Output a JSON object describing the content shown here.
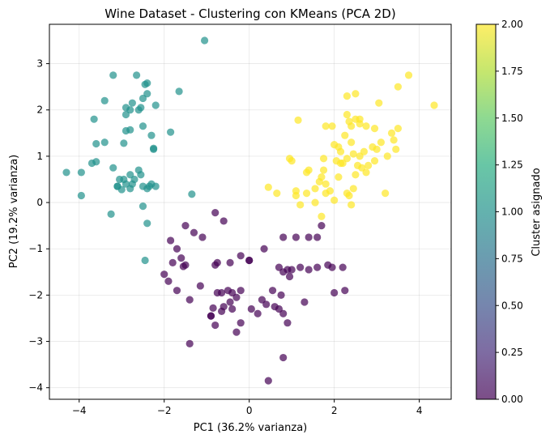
{
  "chart_data": {
    "type": "scatter",
    "title": "Wine Dataset - Clustering con KMeans (PCA 2D)",
    "xlabel": "PC1 (36.2% varianza)",
    "ylabel": "PC2 (19.2% varianza)",
    "xlim": [
      -4.7,
      4.75
    ],
    "ylim": [
      -4.25,
      3.85
    ],
    "xticks": [
      -4,
      -2,
      0,
      2,
      4
    ],
    "yticks": [
      -4,
      -3,
      -2,
      -1,
      0,
      1,
      2,
      3
    ],
    "grid": true,
    "colorbar": {
      "label": "Cluster asignado",
      "range": [
        0,
        2
      ],
      "ticks": [
        "0.00",
        "0.25",
        "0.50",
        "0.75",
        "1.00",
        "1.25",
        "1.50",
        "1.75",
        "2.00"
      ],
      "colormap": "viridis"
    },
    "cluster_colors": {
      "0": "#440154",
      "1": "#21918c",
      "2": "#fde725"
    },
    "series": [
      {
        "cluster": 0,
        "color": "#440154",
        "points": [
          [
            -0.8,
            -0.22
          ],
          [
            -0.6,
            -0.4
          ],
          [
            -1.5,
            -0.5
          ],
          [
            -1.3,
            -0.65
          ],
          [
            -1.85,
            -0.82
          ],
          [
            -1.7,
            -1.0
          ],
          [
            -1.1,
            -0.75
          ],
          [
            -1.6,
            -1.2
          ],
          [
            -1.8,
            -1.3
          ],
          [
            -1.5,
            -1.35
          ],
          [
            -1.55,
            -1.38
          ],
          [
            -2.0,
            -1.55
          ],
          [
            -1.9,
            -1.7
          ],
          [
            -1.7,
            -1.9
          ],
          [
            -1.4,
            -2.1
          ],
          [
            -1.15,
            -1.8
          ],
          [
            -0.75,
            -1.95
          ],
          [
            -0.65,
            -1.95
          ],
          [
            -0.4,
            -1.95
          ],
          [
            -0.5,
            -1.9
          ],
          [
            -0.3,
            -2.05
          ],
          [
            -0.45,
            -2.15
          ],
          [
            -0.6,
            -2.25
          ],
          [
            -0.85,
            -2.28
          ],
          [
            -0.65,
            -2.35
          ],
          [
            -0.8,
            -2.65
          ],
          [
            -0.9,
            -2.45
          ],
          [
            -0.4,
            -2.3
          ],
          [
            -0.2,
            -2.6
          ],
          [
            -0.3,
            -2.8
          ],
          [
            0.05,
            -2.3
          ],
          [
            0.2,
            -2.4
          ],
          [
            0.3,
            -2.1
          ],
          [
            0.4,
            -2.2
          ],
          [
            0.6,
            -2.25
          ],
          [
            0.7,
            -2.3
          ],
          [
            0.8,
            -2.4
          ],
          [
            0.9,
            -2.6
          ],
          [
            0.75,
            -2.0
          ],
          [
            0.55,
            -1.9
          ],
          [
            1.3,
            -2.15
          ],
          [
            0.8,
            -1.5
          ],
          [
            0.7,
            -1.4
          ],
          [
            0.9,
            -1.45
          ],
          [
            1.0,
            -1.45
          ],
          [
            1.2,
            -1.4
          ],
          [
            1.4,
            -1.45
          ],
          [
            1.6,
            -1.4
          ],
          [
            1.85,
            -1.35
          ],
          [
            1.95,
            -1.4
          ],
          [
            2.2,
            -1.4
          ],
          [
            2.0,
            -1.95
          ],
          [
            2.25,
            -1.9
          ],
          [
            0.8,
            -3.35
          ],
          [
            0.45,
            -3.85
          ],
          [
            -1.4,
            -3.05
          ],
          [
            -0.9,
            -2.45
          ],
          [
            0.35,
            -1.0
          ],
          [
            -0.2,
            -1.15
          ],
          [
            0.0,
            -1.25
          ],
          [
            -0.8,
            -1.35
          ],
          [
            -0.45,
            -1.3
          ],
          [
            -0.75,
            -1.3
          ],
          [
            -0.2,
            -1.9
          ],
          [
            1.1,
            -0.75
          ],
          [
            1.4,
            -0.75
          ],
          [
            1.6,
            -0.75
          ],
          [
            0.8,
            -0.75
          ],
          [
            1.7,
            -0.5
          ],
          [
            0.0,
            -1.25
          ],
          [
            0.95,
            -1.6
          ]
        ]
      },
      {
        "cluster": 1,
        "color": "#21918c",
        "points": [
          [
            -1.05,
            3.5
          ],
          [
            -4.3,
            0.65
          ],
          [
            -3.95,
            0.65
          ],
          [
            -3.95,
            0.15
          ],
          [
            -3.7,
            0.85
          ],
          [
            -3.6,
            0.88
          ],
          [
            -3.6,
            1.27
          ],
          [
            -3.65,
            1.8
          ],
          [
            -3.4,
            2.2
          ],
          [
            -3.4,
            1.3
          ],
          [
            -3.2,
            2.75
          ],
          [
            -3.2,
            0.75
          ],
          [
            -3.1,
            0.35
          ],
          [
            -3.05,
            0.5
          ],
          [
            -3.0,
            0.28
          ],
          [
            -3.1,
            0.35
          ],
          [
            -2.9,
            0.4
          ],
          [
            -2.95,
            0.5
          ],
          [
            -2.8,
            0.3
          ],
          [
            -2.8,
            0.6
          ],
          [
            -2.75,
            0.4
          ],
          [
            -2.7,
            0.5
          ],
          [
            -2.6,
            0.7
          ],
          [
            -2.55,
            0.6
          ],
          [
            -2.5,
            0.35
          ],
          [
            -2.4,
            0.3
          ],
          [
            -2.35,
            0.35
          ],
          [
            -2.3,
            0.4
          ],
          [
            -2.2,
            0.35
          ],
          [
            -2.9,
            1.55
          ],
          [
            -2.8,
            1.57
          ],
          [
            -2.95,
            1.28
          ],
          [
            -2.9,
            1.9
          ],
          [
            -2.9,
            2.05
          ],
          [
            -2.8,
            2.0
          ],
          [
            -2.75,
            2.15
          ],
          [
            -2.6,
            2.0
          ],
          [
            -2.55,
            2.05
          ],
          [
            -2.5,
            2.25
          ],
          [
            -2.4,
            2.35
          ],
          [
            -2.45,
            2.55
          ],
          [
            -2.4,
            2.58
          ],
          [
            -2.2,
            2.1
          ],
          [
            -2.65,
            2.75
          ],
          [
            -2.5,
            1.65
          ],
          [
            -2.3,
            1.45
          ],
          [
            -2.25,
            1.15
          ],
          [
            -2.25,
            1.17
          ],
          [
            -1.85,
            1.52
          ],
          [
            -1.65,
            2.4
          ],
          [
            -1.35,
            0.18
          ],
          [
            -2.4,
            -0.45
          ],
          [
            -2.5,
            -0.08
          ],
          [
            -3.25,
            -0.25
          ],
          [
            -2.45,
            -1.25
          ]
        ]
      },
      {
        "cluster": 2,
        "color": "#fde725",
        "points": [
          [
            0.45,
            0.33
          ],
          [
            0.65,
            0.2
          ],
          [
            0.95,
            0.95
          ],
          [
            1.0,
            0.9
          ],
          [
            1.1,
            0.25
          ],
          [
            1.1,
            0.15
          ],
          [
            1.2,
            -0.05
          ],
          [
            1.35,
            0.2
          ],
          [
            1.35,
            0.65
          ],
          [
            1.4,
            0.7
          ],
          [
            1.55,
            0.3
          ],
          [
            1.65,
            0.45
          ],
          [
            1.7,
            0.55
          ],
          [
            1.75,
            0.7
          ],
          [
            1.7,
            -0.3
          ],
          [
            1.8,
            0.4
          ],
          [
            1.8,
            0.2
          ],
          [
            1.9,
            0.25
          ],
          [
            2.0,
            0.05
          ],
          [
            2.1,
            0.55
          ],
          [
            2.05,
            0.9
          ],
          [
            2.0,
            1.25
          ],
          [
            2.1,
            1.2
          ],
          [
            2.15,
            1.1
          ],
          [
            2.3,
            0.2
          ],
          [
            2.35,
            0.15
          ],
          [
            2.4,
            -0.05
          ],
          [
            2.45,
            0.3
          ],
          [
            2.5,
            0.6
          ],
          [
            2.55,
            0.8
          ],
          [
            2.6,
            1.0
          ],
          [
            2.65,
            0.75
          ],
          [
            2.7,
            1.1
          ],
          [
            2.75,
            0.65
          ],
          [
            2.8,
            0.8
          ],
          [
            2.95,
            0.9
          ],
          [
            2.9,
            1.2
          ],
          [
            3.0,
            1.15
          ],
          [
            3.1,
            1.3
          ],
          [
            3.25,
            1.0
          ],
          [
            3.2,
            0.2
          ],
          [
            3.35,
            1.5
          ],
          [
            3.4,
            1.35
          ],
          [
            3.5,
            1.6
          ],
          [
            3.45,
            1.15
          ],
          [
            3.5,
            2.5
          ],
          [
            3.75,
            2.75
          ],
          [
            4.35,
            2.1
          ],
          [
            2.3,
            1.9
          ],
          [
            2.4,
            1.65
          ],
          [
            2.5,
            1.8
          ],
          [
            2.6,
            1.7
          ],
          [
            2.75,
            1.65
          ],
          [
            2.5,
            2.35
          ],
          [
            3.05,
            2.15
          ],
          [
            2.3,
            2.3
          ],
          [
            2.25,
            1.45
          ],
          [
            2.4,
            1.3
          ],
          [
            2.45,
            1.05
          ],
          [
            2.3,
            0.95
          ],
          [
            1.95,
            1.65
          ],
          [
            1.8,
            1.65
          ],
          [
            1.75,
            0.95
          ],
          [
            1.15,
            1.78
          ],
          [
            2.2,
            0.85
          ],
          [
            2.35,
            1.75
          ],
          [
            2.95,
            1.6
          ],
          [
            1.55,
            0.0
          ],
          [
            2.15,
            0.85
          ],
          [
            2.6,
            1.8
          ]
        ]
      }
    ]
  }
}
